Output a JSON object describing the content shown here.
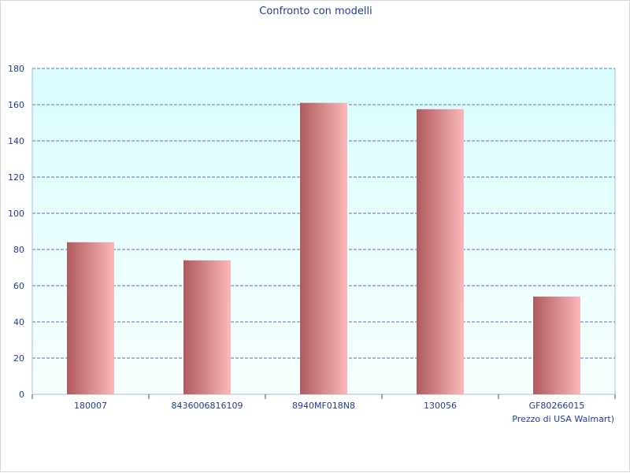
{
  "chart_data": {
    "type": "bar",
    "title": "Confronto con modelli",
    "xlabel": "Prezzo di USA Walmart)",
    "ylabel": "",
    "categories": [
      "180007",
      "8436006816109",
      "8940MF018N8",
      "130056",
      "GF80266015"
    ],
    "values": [
      84,
      74,
      161,
      157.5,
      54
    ],
    "ylim": [
      0,
      180
    ],
    "yticks": [
      0,
      20,
      40,
      60,
      80,
      100,
      120,
      140,
      160,
      180
    ],
    "grid": true,
    "legend": "none",
    "colors": {
      "bar_dark": "#b05a5e",
      "bar_light": "#fbb8b9",
      "plot_bg_top": "#d9fdfd",
      "plot_bg_bottom": "#f8fefe",
      "grid": "#2a4f9a",
      "text": "#1c3f94",
      "axis": "#9fbfdc"
    }
  }
}
